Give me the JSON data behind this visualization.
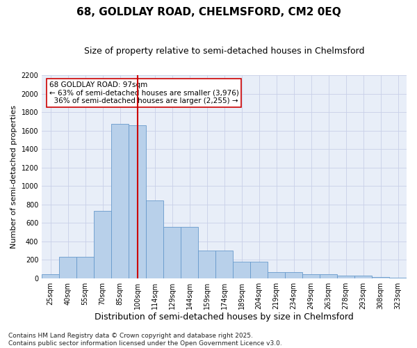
{
  "title": "68, GOLDLAY ROAD, CHELMSFORD, CM2 0EQ",
  "subtitle": "Size of property relative to semi-detached houses in Chelmsford",
  "xlabel": "Distribution of semi-detached houses by size in Chelmsford",
  "ylabel": "Number of semi-detached properties",
  "bar_labels": [
    "25sqm",
    "40sqm",
    "55sqm",
    "70sqm",
    "85sqm",
    "100sqm",
    "114sqm",
    "129sqm",
    "144sqm",
    "159sqm",
    "174sqm",
    "189sqm",
    "204sqm",
    "219sqm",
    "234sqm",
    "249sqm",
    "263sqm",
    "278sqm",
    "293sqm",
    "308sqm",
    "323sqm"
  ],
  "bar_values": [
    45,
    230,
    230,
    730,
    1670,
    1660,
    845,
    555,
    555,
    300,
    300,
    180,
    180,
    65,
    65,
    40,
    40,
    25,
    25,
    12,
    5
  ],
  "bar_color": "#b8d0ea",
  "bar_edge_color": "#6699cc",
  "bg_color": "#e8eef8",
  "grid_color": "#c8d0e8",
  "vline_color": "#cc0000",
  "vline_pos": 5.0,
  "annotation_box_text": "68 GOLDLAY ROAD: 97sqm\n← 63% of semi-detached houses are smaller (3,976)\n  36% of semi-detached houses are larger (2,255) →",
  "ylim": [
    0,
    2200
  ],
  "yticks": [
    0,
    200,
    400,
    600,
    800,
    1000,
    1200,
    1400,
    1600,
    1800,
    2000,
    2200
  ],
  "footnote": "Contains HM Land Registry data © Crown copyright and database right 2025.\nContains public sector information licensed under the Open Government Licence v3.0.",
  "title_fontsize": 11,
  "subtitle_fontsize": 9,
  "xlabel_fontsize": 9,
  "ylabel_fontsize": 8,
  "tick_fontsize": 7,
  "annot_fontsize": 7.5,
  "footnote_fontsize": 6.5
}
